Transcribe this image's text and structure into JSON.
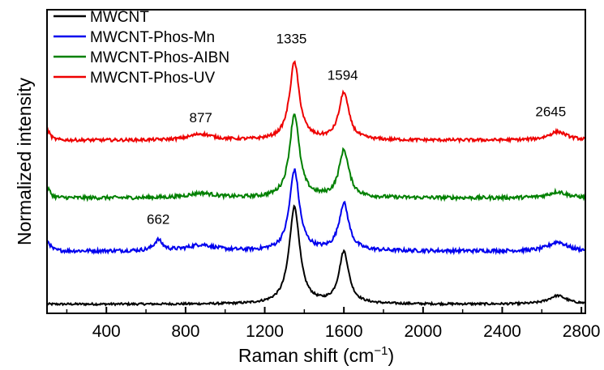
{
  "chart_data": {
    "type": "line",
    "title": "",
    "xlabel": "Raman shift (cm",
    "xlabel_sup": "−1",
    "xlabel_close": ")",
    "ylabel": "Normalized intensity",
    "xlim": [
      100,
      2820
    ],
    "ylim": [
      0,
      10
    ],
    "xticks": [
      400,
      800,
      1200,
      1600,
      2000,
      2400,
      2800
    ],
    "xtick_labels": [
      "400",
      "800",
      "1200",
      "1600",
      "2000",
      "2400",
      "2800"
    ],
    "grid": false,
    "legend_position": "top-left",
    "series": [
      {
        "name": "MWCNT",
        "color": "#000000",
        "offset": 0.3,
        "noise": 0.035,
        "peaks": [
          [
            1350,
            3.2,
            32
          ],
          [
            1600,
            1.7,
            30
          ],
          [
            2680,
            0.28,
            55
          ]
        ]
      },
      {
        "name": "MWCNT-Phos-Mn",
        "color": "#0000ee",
        "offset": 2.05,
        "noise": 0.06,
        "peaks": [
          [
            105,
            0.3,
            15
          ],
          [
            662,
            0.35,
            25
          ],
          [
            880,
            0.2,
            80
          ],
          [
            1350,
            2.65,
            30
          ],
          [
            1600,
            1.55,
            30
          ],
          [
            2680,
            0.3,
            55
          ]
        ]
      },
      {
        "name": "MWCNT-Phos-AIBN",
        "color": "#008000",
        "offset": 3.8,
        "noise": 0.06,
        "peaks": [
          [
            105,
            0.3,
            15
          ],
          [
            880,
            0.15,
            80
          ],
          [
            1350,
            2.75,
            30
          ],
          [
            1600,
            1.55,
            30
          ],
          [
            2680,
            0.2,
            55
          ]
        ]
      },
      {
        "name": "MWCNT-Phos-UV",
        "color": "#ee0000",
        "offset": 5.7,
        "noise": 0.05,
        "peaks": [
          [
            105,
            0.3,
            15
          ],
          [
            877,
            0.2,
            70
          ],
          [
            1350,
            2.55,
            30
          ],
          [
            1600,
            1.55,
            30
          ],
          [
            2680,
            0.28,
            55
          ]
        ]
      }
    ],
    "annotations": [
      {
        "text": "877",
        "x": 877,
        "y": 6.3
      },
      {
        "text": "1335",
        "x": 1335,
        "y": 8.9
      },
      {
        "text": "1594",
        "x": 1594,
        "y": 7.7
      },
      {
        "text": "2645",
        "x": 2645,
        "y": 6.5
      },
      {
        "text": "662",
        "x": 662,
        "y": 2.95
      }
    ]
  }
}
